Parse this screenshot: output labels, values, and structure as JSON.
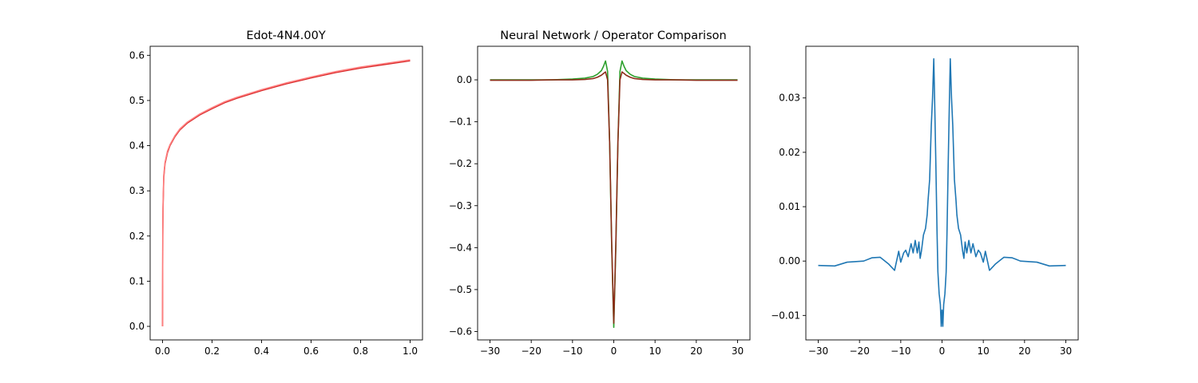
{
  "chart_data": [
    {
      "type": "line",
      "title": "Edot-4N4.00Y",
      "xlabel": "",
      "ylabel": "",
      "xlim": [
        -0.05,
        1.05
      ],
      "ylim": [
        -0.03,
        0.62
      ],
      "xticks": [
        0.0,
        0.2,
        0.4,
        0.6,
        0.8,
        1.0
      ],
      "xtick_labels": [
        "0.0",
        "0.2",
        "0.4",
        "0.6",
        "0.8",
        "1.0"
      ],
      "yticks": [
        0.0,
        0.1,
        0.2,
        0.3,
        0.4,
        0.5,
        0.6
      ],
      "ytick_labels": [
        "0.0",
        "0.1",
        "0.2",
        "0.3",
        "0.4",
        "0.5",
        "0.6"
      ],
      "grid": false,
      "series": [
        {
          "color": "#d62728",
          "x": [
            0,
            0.001,
            0.002,
            0.005,
            0.01,
            0.02,
            0.03,
            0.05,
            0.07,
            0.1,
            0.15,
            0.2,
            0.25,
            0.3,
            0.4,
            0.5,
            0.6,
            0.7,
            0.8,
            0.9,
            1.0
          ],
          "y": [
            0,
            0.2,
            0.26,
            0.33,
            0.36,
            0.385,
            0.4,
            0.42,
            0.435,
            0.45,
            0.468,
            0.482,
            0.495,
            0.505,
            0.522,
            0.537,
            0.55,
            0.562,
            0.572,
            0.58,
            0.588
          ]
        },
        {
          "color": "#ff7f7f",
          "x": [
            0,
            0.001,
            0.002,
            0.005,
            0.01,
            0.02,
            0.03,
            0.05,
            0.07,
            0.1,
            0.15,
            0.2,
            0.25,
            0.3,
            0.4,
            0.5,
            0.6,
            0.7,
            0.8,
            0.9,
            1.0
          ],
          "y": [
            0,
            0.21,
            0.27,
            0.335,
            0.363,
            0.388,
            0.402,
            0.422,
            0.437,
            0.452,
            0.47,
            0.484,
            0.497,
            0.507,
            0.524,
            0.539,
            0.552,
            0.564,
            0.574,
            0.582,
            0.59
          ]
        }
      ]
    },
    {
      "type": "line",
      "title": "Neural Network / Operator Comparison",
      "xlabel": "",
      "ylabel": "",
      "xlim": [
        -33,
        33
      ],
      "ylim": [
        -0.62,
        0.08
      ],
      "xticks": [
        -30,
        -20,
        -10,
        0,
        10,
        20,
        30
      ],
      "xtick_labels": [
        "−30",
        "−20",
        "−10",
        "0",
        "10",
        "20",
        "30"
      ],
      "yticks": [
        0.0,
        -0.1,
        -0.2,
        -0.3,
        -0.4,
        -0.5,
        -0.6
      ],
      "ytick_labels": [
        "0.0",
        "−0.1",
        "−0.2",
        "−0.3",
        "−0.4",
        "−0.5",
        "−0.6"
      ],
      "grid": false,
      "series": [
        {
          "color": "#2ca02c",
          "x": [
            -30,
            -20,
            -15,
            -10,
            -7,
            -5,
            -4,
            -3,
            -2.5,
            -2,
            -1.5,
            -1,
            -0.5,
            0,
            0.5,
            1,
            1.5,
            2,
            2.5,
            3,
            4,
            5,
            7,
            10,
            15,
            20,
            30
          ],
          "y": [
            0.0,
            0.0,
            0.0,
            0.002,
            0.004,
            0.008,
            0.013,
            0.022,
            0.032,
            0.045,
            0.02,
            -0.15,
            -0.4,
            -0.59,
            -0.4,
            -0.15,
            0.02,
            0.045,
            0.032,
            0.022,
            0.013,
            0.008,
            0.004,
            0.002,
            0.0,
            0.0,
            0.0
          ]
        },
        {
          "color": "#8c2d19",
          "x": [
            -30,
            -20,
            -15,
            -10,
            -7,
            -5,
            -4,
            -3,
            -2.5,
            -2,
            -1.5,
            -1,
            -0.5,
            0,
            0.5,
            1,
            1.5,
            2,
            2.5,
            3,
            4,
            5,
            7,
            10,
            15,
            20,
            30
          ],
          "y": [
            -0.001,
            -0.001,
            0.0,
            0.0,
            0.001,
            0.003,
            0.006,
            0.011,
            0.015,
            0.019,
            0.0,
            -0.15,
            -0.39,
            -0.58,
            -0.39,
            -0.15,
            0.0,
            0.019,
            0.015,
            0.011,
            0.006,
            0.003,
            0.001,
            0.0,
            0.0,
            -0.001,
            -0.001
          ]
        }
      ]
    },
    {
      "type": "line",
      "title": "",
      "xlabel": "",
      "ylabel": "",
      "xlim": [
        -33,
        33
      ],
      "ylim": [
        -0.0145,
        0.0395
      ],
      "xticks": [
        -30,
        -20,
        -10,
        0,
        10,
        20,
        30
      ],
      "xtick_labels": [
        "−30",
        "−20",
        "−10",
        "0",
        "10",
        "20",
        "30"
      ],
      "yticks": [
        0.03,
        0.02,
        0.01,
        0.0,
        -0.01
      ],
      "ytick_labels": [
        "0.03",
        "0.02",
        "0.01",
        "0.00",
        "−0.01"
      ],
      "grid": false,
      "series": [
        {
          "color": "#1f77b4",
          "x": [
            -30,
            -26,
            -23,
            -19,
            -17,
            -15,
            -13,
            -11.5,
            -10.5,
            -10,
            -9.3,
            -8.8,
            -8.2,
            -7.5,
            -7,
            -6.5,
            -6,
            -5.6,
            -5.3,
            -5,
            -4.5,
            -4,
            -3.6,
            -3.4,
            -3,
            -2.6,
            -2.3,
            -2,
            -1.8,
            -1.5,
            -1.2,
            -1,
            -0.7,
            -0.4,
            -0.2,
            0,
            0.2,
            0.4,
            0.7,
            1,
            1.2,
            1.5,
            1.8,
            2,
            2.3,
            2.6,
            3,
            3.4,
            3.6,
            4,
            4.5,
            5,
            5.3,
            5.6,
            6,
            6.5,
            7,
            7.5,
            8.2,
            8.8,
            9.3,
            10,
            10.5,
            11.5,
            13,
            15,
            17,
            19,
            23,
            26,
            30
          ],
          "y": [
            -0.0008,
            -0.0009,
            -0.0002,
            0.0,
            0.0006,
            0.0007,
            -0.0005,
            -0.0017,
            0.0018,
            -0.0002,
            0.0015,
            0.002,
            0.0008,
            0.0032,
            0.0015,
            0.0038,
            0.0015,
            0.0035,
            0.0005,
            0.0018,
            0.0048,
            0.006,
            0.0085,
            0.011,
            0.015,
            0.025,
            0.03,
            0.0372,
            0.03,
            0.018,
            0.005,
            -0.002,
            -0.006,
            -0.008,
            -0.012,
            -0.009,
            -0.012,
            -0.008,
            -0.006,
            -0.002,
            0.005,
            0.018,
            0.03,
            0.0372,
            0.03,
            0.025,
            0.015,
            0.011,
            0.0085,
            0.006,
            0.0048,
            0.0018,
            0.0005,
            0.0035,
            0.0015,
            0.0038,
            0.0015,
            0.0032,
            0.0008,
            0.002,
            0.0015,
            -0.0002,
            0.0018,
            -0.0017,
            -0.0005,
            0.0007,
            0.0006,
            0.0,
            -0.0002,
            -0.0009,
            -0.0008
          ]
        }
      ]
    }
  ]
}
